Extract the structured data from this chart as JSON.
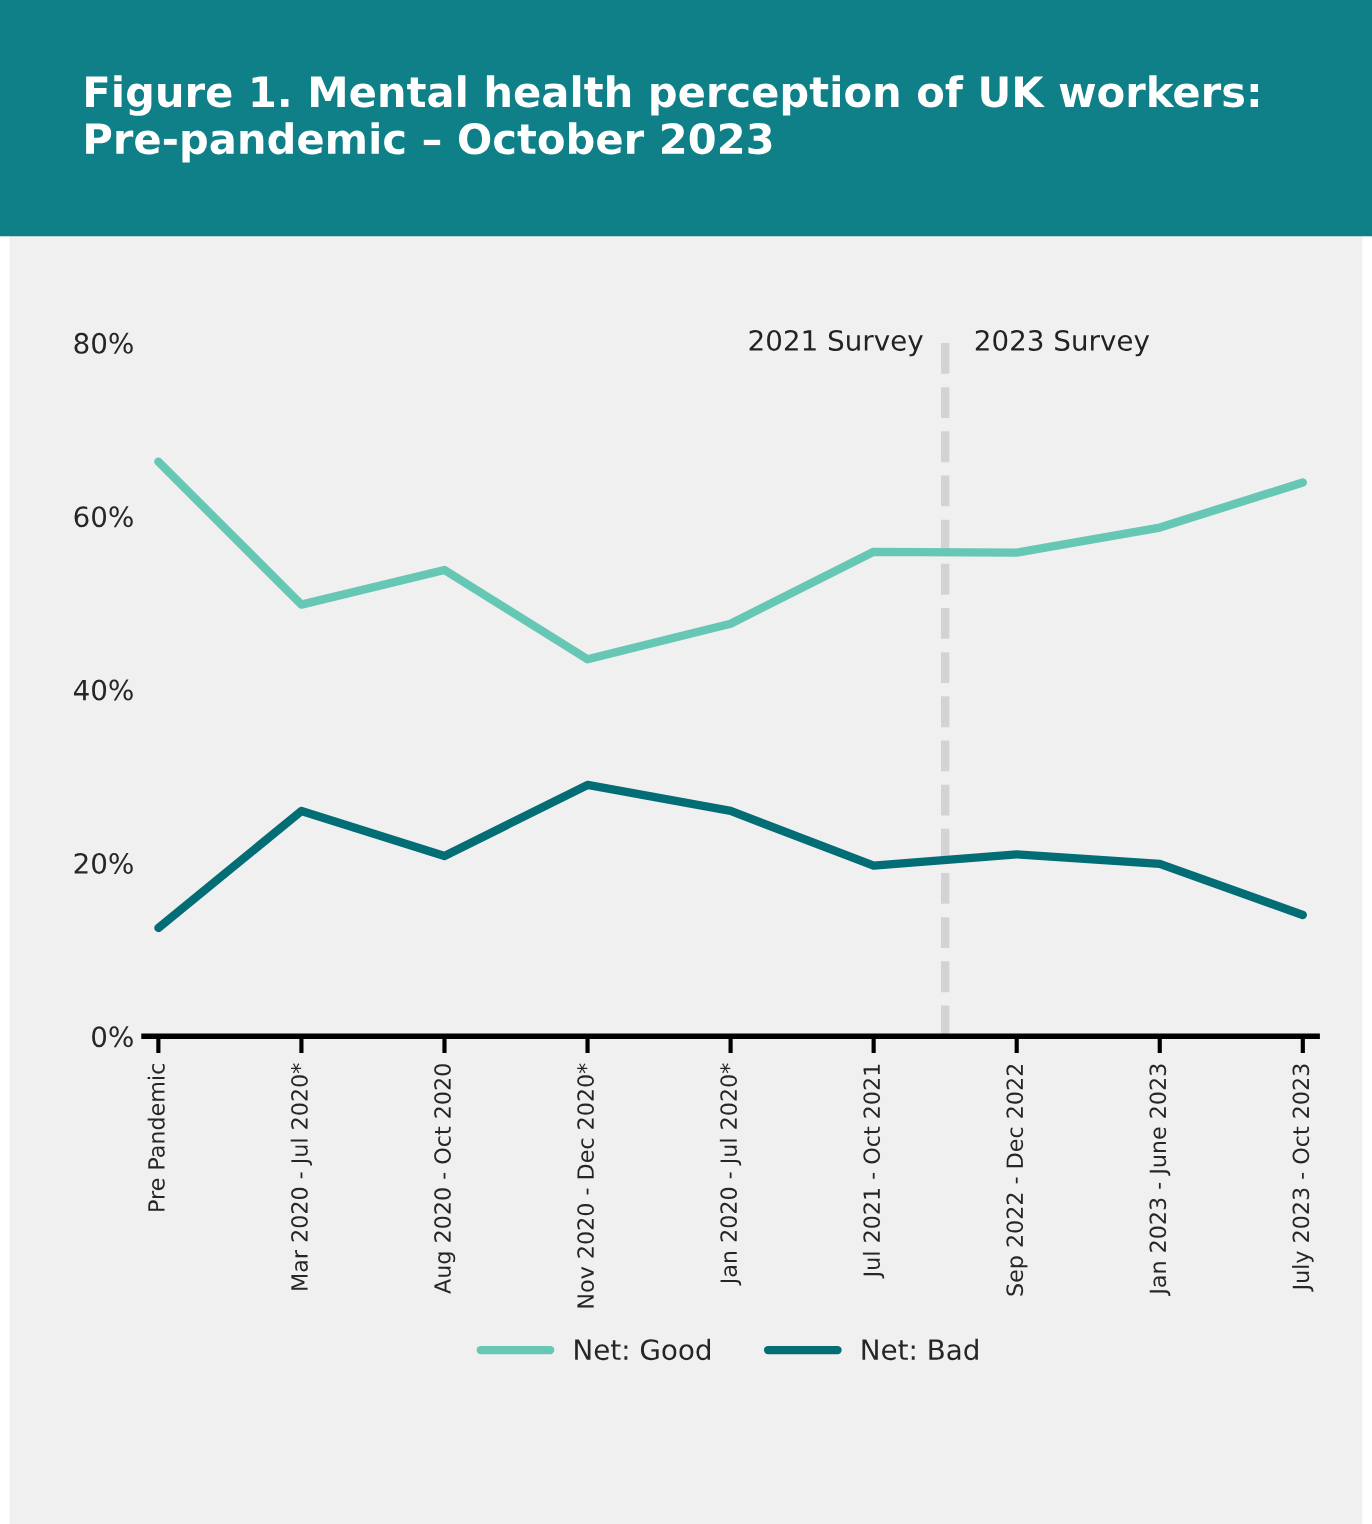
{
  "chart_data": {
    "type": "line",
    "title": "Figure 1. Mental health perception of UK workers:\nPre-pandemic – October 2023",
    "categories": [
      "Pre Pandemic",
      "Mar 2020 - Jul 2020*",
      "Aug 2020 - Oct 2020",
      "Nov 2020 - Dec 2020*",
      "Jan 2020 - Jul 2020*",
      "Jul 2021 - Oct 2021",
      "Sep 2022 - Dec 2022",
      "Jan 2023 - June 2023",
      "July 2023 - Oct 2023"
    ],
    "series": [
      {
        "name": "Net: Good",
        "color": "#66c7b4",
        "values": [
          66.3,
          49.8,
          53.8,
          43.5,
          47.6,
          55.9,
          55.8,
          58.7,
          63.9
        ]
      },
      {
        "name": "Net: Bad",
        "color": "#036d76",
        "values": [
          12.5,
          26,
          20.8,
          29,
          26,
          19.7,
          21,
          19.9,
          14
        ]
      }
    ],
    "ylim": [
      0,
      80
    ],
    "yticks": [
      {
        "value": 0,
        "label": "0%"
      },
      {
        "value": 20,
        "label": "20%"
      },
      {
        "value": 40,
        "label": "40%"
      },
      {
        "value": 60,
        "label": "60%"
      },
      {
        "value": 80,
        "label": "80%"
      }
    ],
    "annotations": [
      "2021 Survey",
      "2023 Survey"
    ],
    "grid": false,
    "legend": "bottom",
    "marker": "none",
    "line_style": "solid"
  }
}
